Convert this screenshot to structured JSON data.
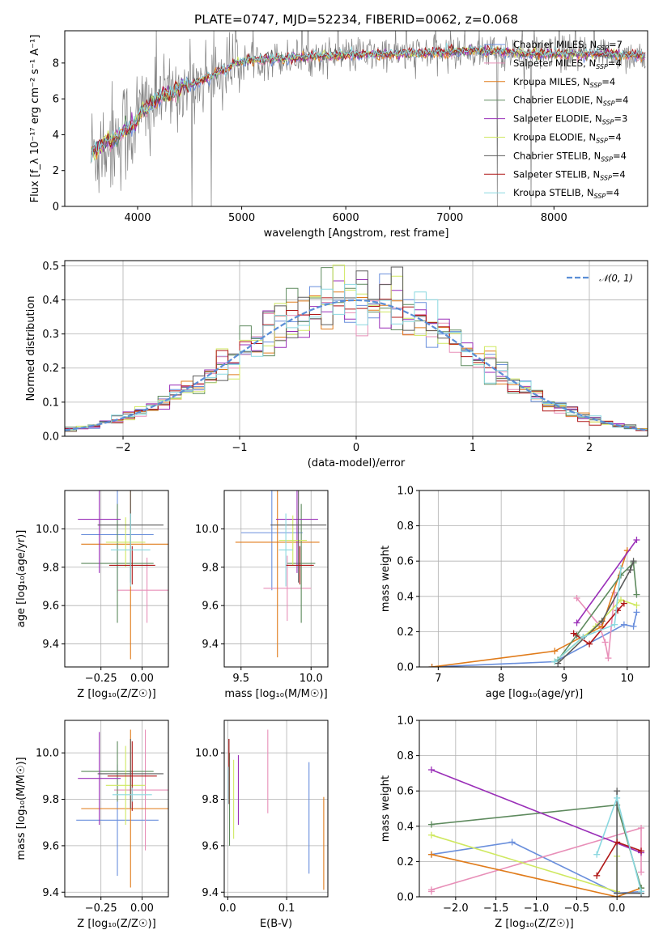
{
  "title": "PLATE=0747, MJD=52234, FIBERID=0062, z=0.068",
  "colors": [
    "#6a8fdc",
    "#e88fb8",
    "#e07b1a",
    "#5e8a5e",
    "#9a2fb8",
    "#cfe860",
    "#5b5b5b",
    "#b01818",
    "#8ad8e0"
  ],
  "chart_data": [
    {
      "id": "spectrum",
      "type": "line",
      "xlabel": "wavelength [Angstrom, rest frame]",
      "ylabel": "Flux [f_λ 10⁻¹⁷ erg cm⁻² s⁻¹ A⁻¹]",
      "xlim": [
        3300,
        8900
      ],
      "ylim": [
        0,
        9.8
      ],
      "xticks": [
        4000,
        5000,
        6000,
        7000,
        8000
      ],
      "yticks": [
        0,
        2,
        4,
        6,
        8
      ],
      "grid": false,
      "legend": "upper right",
      "data_color": "#808080",
      "series": [
        {
          "name": "Chabrier MILES, N_SSP=7"
        },
        {
          "name": "Salpeter MILES, N_SSP=4"
        },
        {
          "name": "Kroupa MILES, N_SSP=4"
        },
        {
          "name": "Chabrier ELODIE, N_SSP=4"
        },
        {
          "name": "Salpeter ELODIE, N_SSP=3"
        },
        {
          "name": "Kroupa ELODIE, N_SSP=4"
        },
        {
          "name": "Chabrier STELIB, N_SSP=4"
        },
        {
          "name": "Salpeter STELIB, N_SSP=4"
        },
        {
          "name": "Kroupa STELIB, N_SSP=4"
        }
      ],
      "continuum": {
        "x": [
          3550,
          3650,
          3800,
          3950,
          4050,
          4200,
          4400,
          4600,
          4800,
          4860,
          4900,
          5000,
          5200,
          5500,
          5800,
          6000,
          6500,
          7000,
          7200,
          7500,
          8000,
          8500,
          8880
        ],
        "y": [
          2.9,
          3.4,
          3.9,
          4.5,
          5.3,
          6.0,
          6.6,
          7.0,
          7.5,
          7.6,
          7.9,
          8.1,
          8.2,
          8.3,
          8.4,
          8.45,
          8.5,
          8.6,
          8.7,
          8.6,
          8.5,
          8.5,
          8.4
        ]
      }
    },
    {
      "id": "residuals",
      "type": "line",
      "xlabel": "(data-model)/error",
      "ylabel": "Normed distribution",
      "xlim": [
        -2.5,
        2.5
      ],
      "ylim": [
        0,
        0.515
      ],
      "xticks": [
        -2,
        -1,
        0,
        1,
        2
      ],
      "yticks": [
        0.0,
        0.1,
        0.2,
        0.3,
        0.4,
        0.5
      ],
      "grid": true,
      "legend": "upper right",
      "reference": {
        "name": "𝒩(0, 1)",
        "color": "#5b8ed6"
      },
      "bin_width": 0.1
    },
    {
      "id": "age-vs-Z",
      "type": "scatter",
      "xlabel": "Z [log₁₀(Z/Z☉)]",
      "ylabel": "age [log₁₀(age/yr)]",
      "xlim": [
        -0.47,
        0.16
      ],
      "ylim": [
        9.28,
        10.2
      ],
      "xticks": [
        -0.25,
        0.0
      ],
      "yticks": [
        9.4,
        9.6,
        9.8,
        10.0
      ],
      "grid": true,
      "points": [
        {
          "x": -0.15,
          "y": 9.97,
          "xerr": 0.22,
          "yerr": 0.3
        },
        {
          "x": 0.03,
          "y": 9.68,
          "xerr": 0.18,
          "yerr": 0.17
        },
        {
          "x": -0.07,
          "y": 9.92,
          "xerr": 0.3,
          "yerr": 0.6
        },
        {
          "x": -0.15,
          "y": 9.82,
          "xerr": 0.22,
          "yerr": 0.31
        },
        {
          "x": -0.26,
          "y": 10.05,
          "xerr": 0.13,
          "yerr": 0.28
        },
        {
          "x": -0.1,
          "y": 9.93,
          "xerr": 0.12,
          "yerr": 0.13
        },
        {
          "x": -0.07,
          "y": 10.02,
          "xerr": 0.2,
          "yerr": 0.3
        },
        {
          "x": -0.06,
          "y": 9.81,
          "xerr": 0.14,
          "yerr": 0.1
        },
        {
          "x": -0.07,
          "y": 9.89,
          "xerr": 0.12,
          "yerr": 0.19
        }
      ]
    },
    {
      "id": "age-vs-mass",
      "type": "scatter",
      "xlabel": "mass [log₁₀(M/M☉)]",
      "ylabel": "",
      "xlim": [
        9.38,
        10.12
      ],
      "ylim": [
        9.28,
        10.2
      ],
      "xticks": [
        9.5,
        10.0
      ],
      "yticks": [
        9.4,
        9.6,
        9.8,
        10.0
      ],
      "grid": true,
      "points": [
        {
          "x": 9.72,
          "y": 9.98,
          "xerr": 0.22,
          "yerr": 0.3
        },
        {
          "x": 9.83,
          "y": 9.69,
          "xerr": 0.17,
          "yerr": 0.17
        },
        {
          "x": 9.76,
          "y": 9.93,
          "xerr": 0.3,
          "yerr": 0.6
        },
        {
          "x": 9.93,
          "y": 9.82,
          "xerr": 0.1,
          "yerr": 0.31
        },
        {
          "x": 9.9,
          "y": 10.05,
          "xerr": 0.15,
          "yerr": 0.28
        },
        {
          "x": 9.87,
          "y": 9.94,
          "xerr": 0.1,
          "yerr": 0.13
        },
        {
          "x": 9.91,
          "y": 10.02,
          "xerr": 0.2,
          "yerr": 0.3
        },
        {
          "x": 9.92,
          "y": 9.81,
          "xerr": 0.1,
          "yerr": 0.1
        },
        {
          "x": 9.82,
          "y": 9.89,
          "xerr": 0.05,
          "yerr": 0.19
        }
      ]
    },
    {
      "id": "massweight-vs-age",
      "type": "line",
      "xlabel": "age [log₁₀(age/yr)]",
      "ylabel": "mass weight",
      "xlim": [
        6.7,
        10.35
      ],
      "ylim": [
        0,
        1.0
      ],
      "xticks": [
        7,
        8,
        9,
        10
      ],
      "yticks": [
        0.0,
        0.2,
        0.4,
        0.6,
        0.8,
        1.0
      ],
      "grid": true,
      "series": [
        {
          "x": [
            6.9,
            8.85,
            9.95,
            10.1,
            10.15
          ],
          "y": [
            0.0,
            0.03,
            0.24,
            0.23,
            0.31
          ]
        },
        {
          "x": [
            9.2,
            9.55,
            9.65,
            9.7,
            9.8
          ],
          "y": [
            0.39,
            0.24,
            0.14,
            0.05,
            0.42
          ]
        },
        {
          "x": [
            6.9,
            8.85,
            9.6,
            10.0
          ],
          "y": [
            0.0,
            0.09,
            0.23,
            0.66
          ]
        },
        {
          "x": [
            8.9,
            9.2,
            9.9,
            10.1,
            10.15
          ],
          "y": [
            0.04,
            0.18,
            0.52,
            0.59,
            0.41
          ]
        },
        {
          "x": [
            9.2,
            10.15
          ],
          "y": [
            0.25,
            0.72
          ]
        },
        {
          "x": [
            8.85,
            9.5,
            9.9,
            10.15
          ],
          "y": [
            0.03,
            0.23,
            0.38,
            0.35
          ]
        },
        {
          "x": [
            8.9,
            9.6,
            10.05,
            10.1
          ],
          "y": [
            0.02,
            0.26,
            0.55,
            0.6
          ]
        },
        {
          "x": [
            9.15,
            9.4,
            9.85,
            9.95
          ],
          "y": [
            0.19,
            0.13,
            0.32,
            0.36
          ]
        },
        {
          "x": [
            8.85,
            9.3,
            9.8,
            9.9
          ],
          "y": [
            0.03,
            0.17,
            0.24,
            0.56
          ]
        }
      ]
    },
    {
      "id": "mass-vs-Z",
      "type": "scatter",
      "xlabel": "Z [log₁₀(Z/Z☉)]",
      "ylabel": "mass [log₁₀(M/M☉)]",
      "xlim": [
        -0.47,
        0.16
      ],
      "ylim": [
        9.38,
        10.14
      ],
      "xticks": [
        -0.25,
        0.0
      ],
      "yticks": [
        9.4,
        9.6,
        9.8,
        10.0
      ],
      "grid": true,
      "points": [
        {
          "x": -0.15,
          "y": 9.71,
          "xerr": 0.25,
          "yerr": 0.24
        },
        {
          "x": 0.02,
          "y": 9.84,
          "xerr": 0.19,
          "yerr": 0.26
        },
        {
          "x": -0.07,
          "y": 9.76,
          "xerr": 0.3,
          "yerr": 0.34
        },
        {
          "x": -0.15,
          "y": 9.92,
          "xerr": 0.22,
          "yerr": 0.13
        },
        {
          "x": -0.26,
          "y": 9.89,
          "xerr": 0.13,
          "yerr": 0.2
        },
        {
          "x": -0.1,
          "y": 9.86,
          "xerr": 0.12,
          "yerr": 0.17
        },
        {
          "x": -0.07,
          "y": 9.91,
          "xerr": 0.2,
          "yerr": 0.15
        },
        {
          "x": -0.06,
          "y": 9.9,
          "xerr": 0.15,
          "yerr": 0.15
        },
        {
          "x": -0.06,
          "y": 9.82,
          "xerr": 0.12,
          "yerr": 0.03
        }
      ]
    },
    {
      "id": "mass-vs-ebv",
      "type": "scatter",
      "xlabel": "E(B-V)",
      "ylabel": "",
      "xlim": [
        -0.006,
        0.17
      ],
      "ylim": [
        9.38,
        10.14
      ],
      "xticks": [
        0.0,
        0.1
      ],
      "yticks": [
        9.4,
        9.6,
        9.8,
        10.0
      ],
      "grid": true,
      "points": [
        {
          "x": 0.138,
          "y": 9.72,
          "xerr": 0.0,
          "yerr": 0.24
        },
        {
          "x": 0.068,
          "y": 9.92,
          "xerr": 0.0,
          "yerr": 0.18
        },
        {
          "x": 0.163,
          "y": 9.61,
          "xerr": 0.0,
          "yerr": 0.2
        },
        {
          "x": 0.003,
          "y": 9.8,
          "xerr": 0.0,
          "yerr": 0.2
        },
        {
          "x": 0.018,
          "y": 9.84,
          "xerr": 0.0,
          "yerr": 0.15
        },
        {
          "x": 0.01,
          "y": 9.8,
          "xerr": 0.0,
          "yerr": 0.17
        },
        {
          "x": 0.002,
          "y": 9.95,
          "xerr": 0.0,
          "yerr": 0.11
        },
        {
          "x": 0.002,
          "y": 9.92,
          "xerr": 0.0,
          "yerr": 0.14
        },
        {
          "x": 0.001,
          "y": 9.86,
          "xerr": 0.0,
          "yerr": 0.08
        }
      ]
    },
    {
      "id": "massweight-vs-Z",
      "type": "line",
      "xlabel": "Z [log₁₀(Z/Z☉)]",
      "ylabel": "mass weight",
      "xlim": [
        -2.45,
        0.4
      ],
      "ylim": [
        0,
        1.0
      ],
      "xticks": [
        -2.0,
        -1.5,
        -1.0,
        -0.5,
        0.0
      ],
      "yticks": [
        0.0,
        0.2,
        0.4,
        0.6,
        0.8,
        1.0
      ],
      "grid": true,
      "series": [
        {
          "x": [
            -2.3,
            -1.3,
            0.0,
            0.3
          ],
          "y": [
            0.24,
            0.31,
            0.02,
            0.03
          ]
        },
        {
          "x": [
            -2.3,
            -2.3,
            0.3,
            0.3
          ],
          "y": [
            0.03,
            0.04,
            0.39,
            0.14
          ]
        },
        {
          "x": [
            -2.3,
            0.0,
            0.3
          ],
          "y": [
            0.24,
            0.0,
            0.05
          ]
        },
        {
          "x": [
            -2.3,
            0.0,
            0.3,
            0.3
          ],
          "y": [
            0.41,
            0.52,
            0.05,
            0.05
          ]
        },
        {
          "x": [
            -2.3,
            0.3
          ],
          "y": [
            0.72,
            0.25
          ]
        },
        {
          "x": [
            -2.3,
            0.0,
            0.0
          ],
          "y": [
            0.35,
            0.03,
            0.23
          ]
        },
        {
          "x": [
            0.0,
            0.0,
            0.3
          ],
          "y": [
            0.6,
            0.02,
            0.02
          ]
        },
        {
          "x": [
            -0.25,
            0.0,
            0.3
          ],
          "y": [
            0.12,
            0.31,
            0.26
          ]
        },
        {
          "x": [
            -0.25,
            0.0,
            0.3
          ],
          "y": [
            0.24,
            0.56,
            0.03
          ]
        }
      ]
    }
  ]
}
